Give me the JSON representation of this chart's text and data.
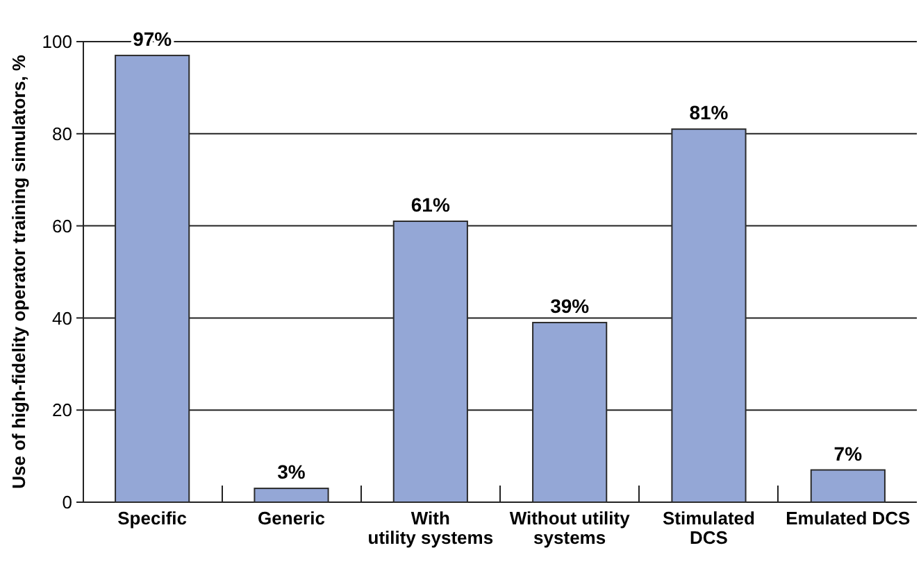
{
  "chart_data": {
    "type": "bar",
    "ylabel": "Use of high-fidelity operator training simulators, %",
    "categories": [
      "Specific",
      "Generic",
      "With\nutility systems",
      "Without utility\nsystems",
      "Stimulated\nDCS",
      "Emulated DCS"
    ],
    "values": [
      97,
      3,
      61,
      39,
      81,
      7
    ],
    "value_labels": [
      "97%",
      "3%",
      "61%",
      "39%",
      "81%",
      "7%"
    ],
    "color": "#94a7d6",
    "ylim": [
      0,
      100
    ],
    "yticks": [
      0,
      20,
      40,
      60,
      80,
      100
    ],
    "grid": "y"
  }
}
